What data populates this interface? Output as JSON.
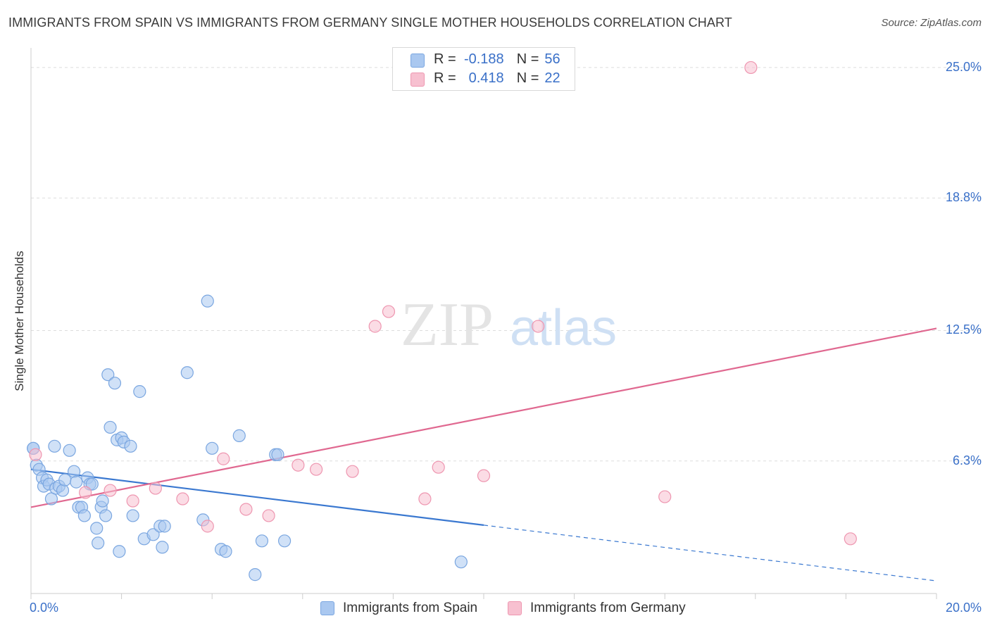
{
  "chart_data": {
    "type": "scatter",
    "title": "IMMIGRANTS FROM SPAIN VS IMMIGRANTS FROM GERMANY SINGLE MOTHER HOUSEHOLDS CORRELATION CHART",
    "source": "Source: ZipAtlas.com",
    "xlabel": "",
    "ylabel": "Single Mother Households",
    "xlim": [
      0,
      20
    ],
    "ylim": [
      0,
      25.6
    ],
    "x_tick_labels": {
      "left": "0.0%",
      "right": "20.0%"
    },
    "y_ticks": [
      {
        "value": 6.3,
        "label": "6.3%"
      },
      {
        "value": 12.5,
        "label": "12.5%"
      },
      {
        "value": 18.8,
        "label": "18.8%"
      },
      {
        "value": 25.0,
        "label": "25.0%"
      }
    ],
    "watermark": {
      "part1": "ZIP",
      "part2": "atlas"
    },
    "legend": [
      {
        "r_label": "R =",
        "r_value": "-0.188",
        "n_label": "N =",
        "n_value": "56"
      },
      {
        "r_label": "R =",
        "r_value": "0.418",
        "n_label": "N =",
        "n_value": "22"
      }
    ],
    "series": [
      {
        "name": "Immigrants from Spain",
        "color": "#aac8f0",
        "stroke": "#7aa6e0",
        "line_color": "#3a78d0",
        "trend": {
          "x0": 0,
          "y0": 5.9,
          "x1": 20,
          "y1": 0.6,
          "solid_until": 10
        },
        "points": [
          [
            0.05,
            6.9
          ],
          [
            0.12,
            6.1
          ],
          [
            0.18,
            5.9
          ],
          [
            0.25,
            5.5
          ],
          [
            0.28,
            5.1
          ],
          [
            0.35,
            5.4
          ],
          [
            0.4,
            5.2
          ],
          [
            0.45,
            4.5
          ],
          [
            0.52,
            7.0
          ],
          [
            0.55,
            5.0
          ],
          [
            0.62,
            5.1
          ],
          [
            0.7,
            4.9
          ],
          [
            0.75,
            5.4
          ],
          [
            0.85,
            6.8
          ],
          [
            0.95,
            5.8
          ],
          [
            1.0,
            5.3
          ],
          [
            1.05,
            4.1
          ],
          [
            1.12,
            4.1
          ],
          [
            1.18,
            3.7
          ],
          [
            1.25,
            5.5
          ],
          [
            1.3,
            5.2
          ],
          [
            1.35,
            5.2
          ],
          [
            1.45,
            3.1
          ],
          [
            1.48,
            2.4
          ],
          [
            1.55,
            4.1
          ],
          [
            1.58,
            4.4
          ],
          [
            1.65,
            3.7
          ],
          [
            1.7,
            10.4
          ],
          [
            1.75,
            7.9
          ],
          [
            1.85,
            10.0
          ],
          [
            1.9,
            7.3
          ],
          [
            1.95,
            2.0
          ],
          [
            2.0,
            7.4
          ],
          [
            2.05,
            7.2
          ],
          [
            2.2,
            7.0
          ],
          [
            2.25,
            3.7
          ],
          [
            2.4,
            9.6
          ],
          [
            2.5,
            2.6
          ],
          [
            2.7,
            2.8
          ],
          [
            2.85,
            3.2
          ],
          [
            2.9,
            2.2
          ],
          [
            2.95,
            3.2
          ],
          [
            3.45,
            10.5
          ],
          [
            3.8,
            3.5
          ],
          [
            3.9,
            13.9
          ],
          [
            4.0,
            6.9
          ],
          [
            4.2,
            2.1
          ],
          [
            4.3,
            2.0
          ],
          [
            4.6,
            7.5
          ],
          [
            4.95,
            0.9
          ],
          [
            5.1,
            2.5
          ],
          [
            5.4,
            6.6
          ],
          [
            5.45,
            6.6
          ],
          [
            5.6,
            2.5
          ],
          [
            9.5,
            1.5
          ],
          [
            0.05,
            6.9
          ]
        ]
      },
      {
        "name": "Immigrants from Germany",
        "color": "#f7c0d0",
        "stroke": "#ee96b0",
        "line_color": "#e06890",
        "trend": {
          "x0": 0,
          "y0": 4.1,
          "x1": 20,
          "y1": 12.6,
          "solid_until": 20
        },
        "points": [
          [
            0.1,
            6.6
          ],
          [
            1.2,
            4.8
          ],
          [
            1.75,
            4.9
          ],
          [
            2.25,
            4.4
          ],
          [
            2.75,
            5.0
          ],
          [
            3.35,
            4.5
          ],
          [
            3.9,
            3.2
          ],
          [
            4.25,
            6.4
          ],
          [
            4.75,
            4.0
          ],
          [
            5.25,
            3.7
          ],
          [
            5.9,
            6.1
          ],
          [
            6.3,
            5.9
          ],
          [
            7.1,
            5.8
          ],
          [
            7.6,
            12.7
          ],
          [
            7.9,
            13.4
          ],
          [
            8.7,
            4.5
          ],
          [
            9.0,
            6.0
          ],
          [
            10.0,
            5.6
          ],
          [
            11.2,
            12.7
          ],
          [
            14.0,
            4.6
          ],
          [
            15.9,
            25.0
          ],
          [
            18.1,
            2.6
          ]
        ]
      }
    ]
  }
}
